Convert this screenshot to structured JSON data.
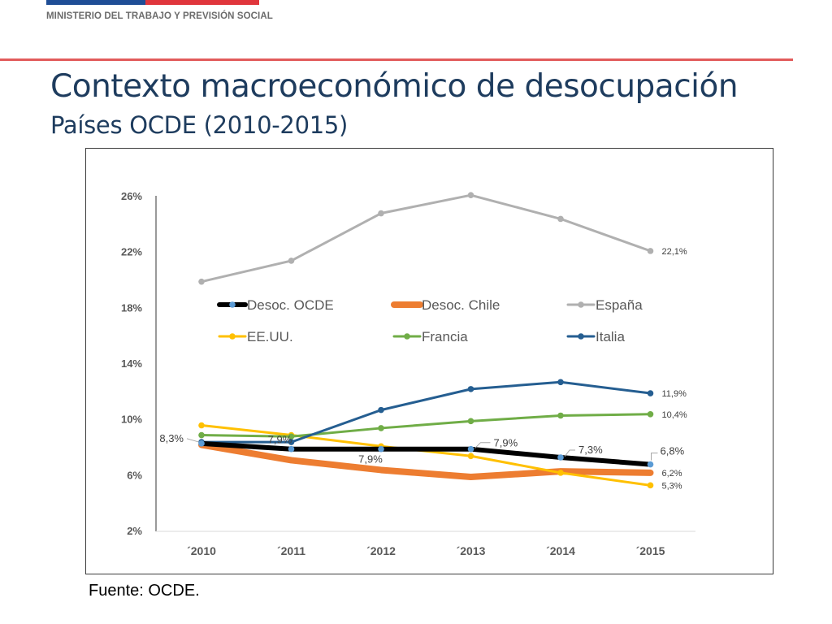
{
  "header": {
    "ministry": "MINISTERIO DEL TRABAJO Y PREVISIÓN SOCIAL",
    "title": "Contexto macroeconómico de desocupación",
    "subtitle": "Países OCDE (2010-2015)",
    "source": "Fuente: OCDE.",
    "colors": {
      "flag_blue": "#1f4e96",
      "flag_red": "#e0363c",
      "rule": "#e25b5b",
      "title": "#1e3c5e"
    }
  },
  "chart_data": {
    "type": "line",
    "title": "",
    "xlabel": "",
    "ylabel": "",
    "categories": [
      "´2010",
      "´2011",
      "´2012",
      "´2013",
      "´2014",
      "´2015"
    ],
    "y_ticks": [
      "2%",
      "6%",
      "10%",
      "14%",
      "18%",
      "22%",
      "26%"
    ],
    "ylim": [
      2,
      26
    ],
    "grid": false,
    "legend": "inside, upper middle, two rows",
    "series": [
      {
        "name": "Desoc. OCDE",
        "color": "#000000",
        "values": [
          8.3,
          7.9,
          7.9,
          7.9,
          7.3,
          6.8
        ]
      },
      {
        "name": "Desoc. Chile",
        "color": "#ed7d31",
        "values": [
          8.2,
          7.1,
          6.4,
          5.9,
          6.3,
          6.2
        ]
      },
      {
        "name": "España",
        "color": "#b0b0b0",
        "values": [
          19.9,
          21.4,
          24.8,
          26.1,
          24.4,
          22.1
        ]
      },
      {
        "name": "EE.UU.",
        "color": "#ffc000",
        "values": [
          9.6,
          8.9,
          8.1,
          7.4,
          6.2,
          5.3
        ]
      },
      {
        "name": "Francia",
        "color": "#70ad47",
        "values": [
          8.9,
          8.8,
          9.4,
          9.9,
          10.3,
          10.4
        ]
      },
      {
        "name": "Italia",
        "color": "#255e91",
        "values": [
          8.4,
          8.4,
          10.7,
          12.2,
          12.7,
          11.9
        ]
      }
    ],
    "data_labels": [
      {
        "series": "Desoc. OCDE",
        "index": 0,
        "text": "8,3%"
      },
      {
        "series": "Desoc. OCDE",
        "index": 1,
        "text": "7,9%"
      },
      {
        "series": "Desoc. OCDE",
        "index": 2,
        "text": "7,9%"
      },
      {
        "series": "Desoc. OCDE",
        "index": 3,
        "text": "7,9%"
      },
      {
        "series": "Desoc. OCDE",
        "index": 4,
        "text": "7,3%"
      },
      {
        "series": "Desoc. OCDE",
        "index": 5,
        "text": "6,8%"
      },
      {
        "series": "España",
        "index": 5,
        "text": "22,1%"
      },
      {
        "series": "Italia",
        "index": 5,
        "text": "11,9%"
      },
      {
        "series": "Francia",
        "index": 5,
        "text": "10,4%"
      },
      {
        "series": "Desoc. Chile",
        "index": 5,
        "text": "6,2%"
      },
      {
        "series": "EE.UU.",
        "index": 5,
        "text": "5,3%"
      }
    ]
  }
}
